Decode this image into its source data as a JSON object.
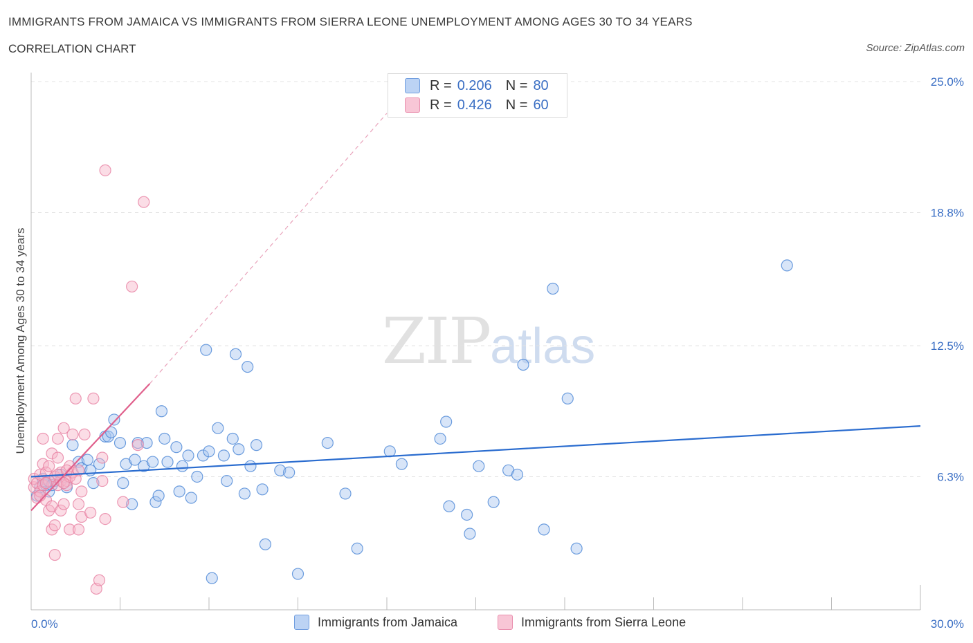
{
  "title": "IMMIGRANTS FROM JAMAICA VS IMMIGRANTS FROM SIERRA LEONE UNEMPLOYMENT AMONG AGES 30 TO 34 YEARS",
  "subtitle": "CORRELATION CHART",
  "source": "Source: ZipAtlas.com",
  "watermark": {
    "part1": "ZIP",
    "part2": "atlas"
  },
  "legend": [
    {
      "r_label": "R = ",
      "r_value": "0.206",
      "n_label": "N = ",
      "n_value": "80",
      "color": "#a9c6f0"
    },
    {
      "r_label": "R = ",
      "r_value": "0.426",
      "n_label": "N = ",
      "n_value": "60",
      "color": "#f6b4c8"
    }
  ],
  "chart_data": {
    "type": "scatter",
    "title": "IMMIGRANTS FROM JAMAICA VS IMMIGRANTS FROM SIERRA LEONE UNEMPLOYMENT AMONG AGES 30 TO 34 YEARS",
    "xlabel": "",
    "ylabel": "Unemployment Among Ages 30 to 34 years",
    "xlim": [
      0,
      30
    ],
    "ylim": [
      0,
      25
    ],
    "x_tick_labels": [
      "0.0%",
      "30.0%"
    ],
    "y_ticks": [
      6.3,
      12.5,
      18.8,
      25.0
    ],
    "y_tick_labels": [
      "6.3%",
      "12.5%",
      "18.8%",
      "25.0%"
    ],
    "grid": true,
    "legend_position": "top-center",
    "series": [
      {
        "name": "Immigrants from Jamaica",
        "color": "#4a86d6",
        "fill": "#a9c6f0",
        "trend": {
          "x0": 0,
          "y0": 6.3,
          "x1": 30,
          "y1": 8.7,
          "style": "solid",
          "color": "#2a6ccf"
        },
        "points": [
          [
            0.2,
            5.4
          ],
          [
            0.3,
            5.8
          ],
          [
            0.4,
            6.2
          ],
          [
            0.5,
            5.9
          ],
          [
            0.6,
            5.6
          ],
          [
            0.8,
            6.1
          ],
          [
            1.0,
            6.4
          ],
          [
            1.2,
            5.8
          ],
          [
            1.4,
            7.8
          ],
          [
            1.6,
            7.0
          ],
          [
            1.7,
            6.7
          ],
          [
            1.9,
            7.1
          ],
          [
            2.0,
            6.6
          ],
          [
            2.1,
            6.0
          ],
          [
            2.3,
            6.9
          ],
          [
            2.5,
            8.2
          ],
          [
            2.6,
            8.2
          ],
          [
            2.7,
            8.4
          ],
          [
            2.8,
            9.0
          ],
          [
            3.0,
            7.9
          ],
          [
            3.1,
            6.0
          ],
          [
            3.2,
            6.9
          ],
          [
            3.4,
            5.0
          ],
          [
            3.5,
            7.1
          ],
          [
            3.6,
            7.9
          ],
          [
            3.8,
            6.8
          ],
          [
            3.9,
            7.9
          ],
          [
            4.1,
            7.0
          ],
          [
            4.2,
            5.1
          ],
          [
            4.3,
            5.4
          ],
          [
            4.4,
            9.4
          ],
          [
            4.5,
            8.1
          ],
          [
            4.6,
            7.0
          ],
          [
            4.9,
            7.7
          ],
          [
            5.0,
            5.6
          ],
          [
            5.1,
            6.8
          ],
          [
            5.3,
            7.3
          ],
          [
            5.4,
            5.3
          ],
          [
            5.6,
            6.3
          ],
          [
            5.8,
            7.3
          ],
          [
            5.9,
            12.3
          ],
          [
            6.0,
            7.5
          ],
          [
            6.1,
            1.5
          ],
          [
            6.3,
            8.6
          ],
          [
            6.5,
            7.3
          ],
          [
            6.6,
            6.1
          ],
          [
            6.8,
            8.1
          ],
          [
            6.9,
            12.1
          ],
          [
            7.0,
            7.6
          ],
          [
            7.2,
            5.5
          ],
          [
            7.3,
            11.5
          ],
          [
            7.4,
            6.8
          ],
          [
            7.6,
            7.8
          ],
          [
            7.8,
            5.7
          ],
          [
            7.9,
            3.1
          ],
          [
            8.4,
            6.6
          ],
          [
            8.7,
            6.5
          ],
          [
            9.0,
            1.7
          ],
          [
            10.0,
            7.9
          ],
          [
            10.6,
            5.5
          ],
          [
            11.0,
            2.9
          ],
          [
            12.1,
            7.5
          ],
          [
            12.5,
            6.9
          ],
          [
            13.8,
            8.1
          ],
          [
            14.0,
            8.9
          ],
          [
            14.1,
            4.9
          ],
          [
            14.7,
            4.5
          ],
          [
            14.8,
            3.6
          ],
          [
            15.1,
            6.8
          ],
          [
            15.6,
            5.1
          ],
          [
            16.1,
            6.6
          ],
          [
            16.4,
            6.4
          ],
          [
            16.6,
            11.6
          ],
          [
            17.3,
            3.8
          ],
          [
            17.6,
            15.2
          ],
          [
            18.1,
            10.0
          ],
          [
            18.4,
            2.9
          ],
          [
            25.5,
            16.3
          ],
          [
            0.4,
            6.1
          ],
          [
            0.7,
            5.9
          ]
        ]
      },
      {
        "name": "Immigrants from Sierra Leone",
        "color": "#e77fa1",
        "fill": "#f6b4c8",
        "trend": {
          "x0": 0,
          "y0": 4.7,
          "x1": 4.0,
          "y1": 10.7,
          "style": "solid",
          "color": "#e0608c"
        },
        "trend_dashed": {
          "x0": 4.0,
          "y0": 10.7,
          "x1": 12.0,
          "y1": 23.5,
          "style": "dashed",
          "color": "#e9a3bb"
        },
        "points": [
          [
            0.1,
            5.8
          ],
          [
            0.1,
            6.2
          ],
          [
            0.2,
            5.3
          ],
          [
            0.2,
            6.0
          ],
          [
            0.3,
            5.6
          ],
          [
            0.3,
            6.4
          ],
          [
            0.4,
            5.9
          ],
          [
            0.4,
            6.9
          ],
          [
            0.4,
            8.1
          ],
          [
            0.5,
            5.2
          ],
          [
            0.5,
            6.5
          ],
          [
            0.6,
            4.7
          ],
          [
            0.6,
            6.1
          ],
          [
            0.7,
            4.9
          ],
          [
            0.7,
            7.4
          ],
          [
            0.7,
            3.8
          ],
          [
            0.8,
            6.3
          ],
          [
            0.8,
            2.6
          ],
          [
            0.8,
            4.0
          ],
          [
            0.9,
            8.1
          ],
          [
            0.9,
            5.9
          ],
          [
            0.9,
            7.2
          ],
          [
            1.0,
            6.1
          ],
          [
            1.0,
            6.5
          ],
          [
            1.0,
            4.7
          ],
          [
            1.1,
            5.0
          ],
          [
            1.1,
            8.6
          ],
          [
            1.2,
            6.1
          ],
          [
            1.2,
            5.9
          ],
          [
            1.3,
            3.8
          ],
          [
            1.3,
            6.3
          ],
          [
            1.3,
            6.8
          ],
          [
            1.4,
            8.3
          ],
          [
            1.4,
            6.5
          ],
          [
            1.5,
            6.2
          ],
          [
            1.5,
            10.0
          ],
          [
            1.6,
            3.8
          ],
          [
            1.6,
            5.0
          ],
          [
            1.6,
            6.6
          ],
          [
            1.7,
            5.6
          ],
          [
            1.7,
            4.4
          ],
          [
            1.8,
            8.3
          ],
          [
            2.0,
            4.6
          ],
          [
            2.1,
            10.0
          ],
          [
            2.2,
            1.0
          ],
          [
            2.3,
            1.4
          ],
          [
            2.4,
            7.2
          ],
          [
            2.4,
            6.1
          ],
          [
            2.5,
            4.3
          ],
          [
            2.5,
            20.8
          ],
          [
            3.1,
            5.1
          ],
          [
            3.4,
            15.3
          ],
          [
            3.6,
            7.8
          ],
          [
            3.8,
            19.3
          ],
          [
            0.3,
            5.4
          ],
          [
            0.5,
            6.0
          ],
          [
            0.6,
            6.8
          ],
          [
            0.9,
            6.4
          ],
          [
            1.1,
            6.0
          ],
          [
            1.2,
            6.6
          ]
        ]
      }
    ]
  },
  "bottom_legend": [
    {
      "label": "Immigrants from Jamaica",
      "color": "#a9c6f0",
      "border": "#4a86d6"
    },
    {
      "label": "Immigrants from Sierra Leone",
      "color": "#f6b4c8",
      "border": "#e77fa1"
    }
  ]
}
